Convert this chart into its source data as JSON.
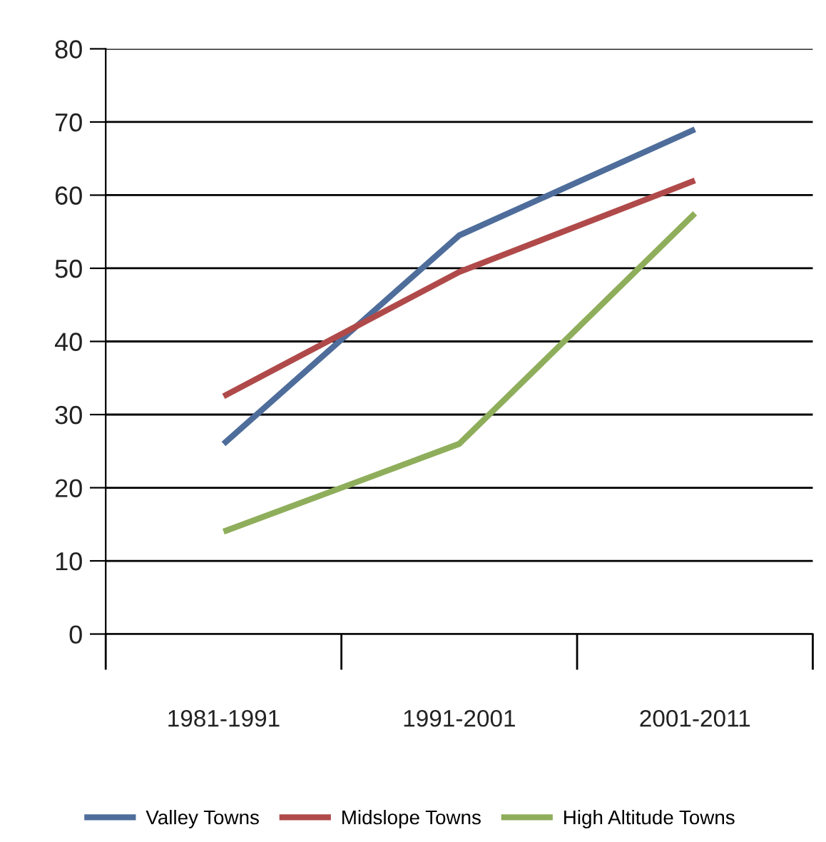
{
  "chart_data": {
    "type": "line",
    "categories": [
      "1981-1991",
      "1991-2001",
      "2001-2011"
    ],
    "series": [
      {
        "name": "Valley Towns",
        "color": "#4e6d9b",
        "values": [
          26,
          54.5,
          69
        ]
      },
      {
        "name": "Midslope Towns",
        "color": "#b04a4a",
        "values": [
          32.5,
          49.5,
          62
        ]
      },
      {
        "name": "High Altitude Towns",
        "color": "#8fae5b",
        "values": [
          14,
          26,
          57.5
        ]
      }
    ],
    "ylim": [
      0,
      80
    ],
    "yticks": [
      0,
      10,
      20,
      30,
      40,
      50,
      60,
      70,
      80
    ],
    "grid": "y",
    "legend": "bottom",
    "marker": "none",
    "line_style": "solid"
  }
}
